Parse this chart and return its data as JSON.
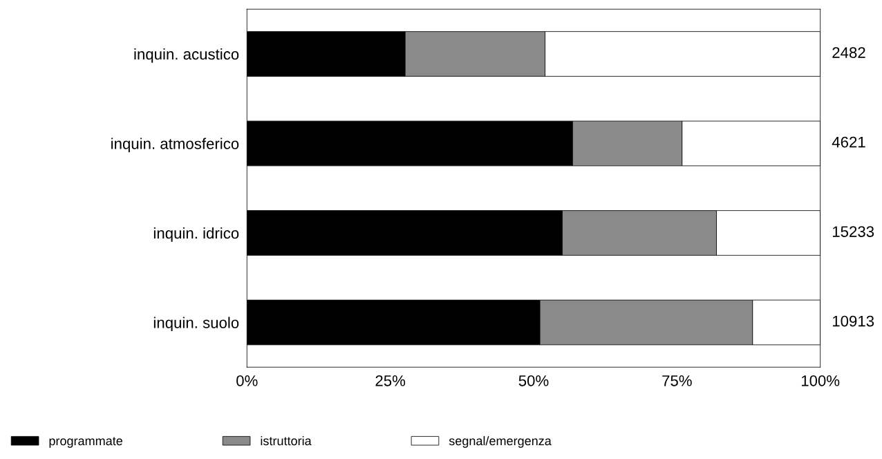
{
  "chart_data": {
    "type": "bar",
    "orientation": "horizontal",
    "stacked": true,
    "categories": [
      "inquin. acustico",
      "inquin. atmosferico",
      "inquin. idrico",
      "inquin. suolo"
    ],
    "series": [
      {
        "name": "programmate",
        "color": "#000000",
        "values": [
          27.6,
          56.8,
          55.0,
          51.1
        ]
      },
      {
        "name": "istruttoria",
        "color": "#8a8a8a",
        "values": [
          24.4,
          19.1,
          26.9,
          37.1
        ]
      },
      {
        "name": "segnal/emergenza",
        "color": "#ffffff",
        "values": [
          48.0,
          24.1,
          18.1,
          11.8
        ]
      }
    ],
    "annotations": [
      "2482",
      "4621",
      "15233",
      "10913"
    ],
    "xlim": [
      0,
      100
    ],
    "xticks": [
      {
        "value": 0,
        "label": "0%"
      },
      {
        "value": 25,
        "label": "25%"
      },
      {
        "value": 50,
        "label": "50%"
      },
      {
        "value": 75,
        "label": "75%"
      },
      {
        "value": 100,
        "label": "100%"
      }
    ],
    "legend": "bottom left",
    "grid": false
  }
}
